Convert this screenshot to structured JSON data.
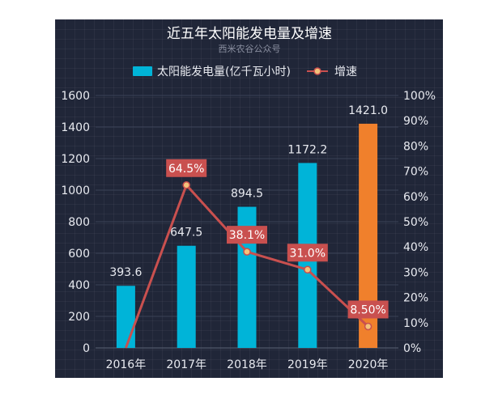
{
  "chart_data": {
    "type": "bar+line",
    "title": "近五年太阳能发电量及增速",
    "subtitle": "西米农谷公众号",
    "categories": [
      "2016年",
      "2017年",
      "2018年",
      "2019年",
      "2020年"
    ],
    "series": [
      {
        "name": "太阳能发电量(亿千瓦小时)",
        "type": "bar",
        "axis": "left",
        "values": [
          393.6,
          647.5,
          894.5,
          1172.2,
          1421.0
        ],
        "labels": [
          "393.6",
          "647.5",
          "894.5",
          "1172.2",
          "1421.0"
        ],
        "color": "#00b4d8",
        "highlight_color": "#f0802c",
        "highlight_index": 4
      },
      {
        "name": "增速",
        "type": "line",
        "axis": "right",
        "values": [
          0,
          64.5,
          38.1,
          31.0,
          8.5
        ],
        "labels": [
          "",
          "64.5%",
          "38.1%",
          "31.0%",
          "8.50%"
        ],
        "color": "#c9504f"
      }
    ],
    "y_left": {
      "min": 0,
      "max": 1600,
      "ticks": [
        "0",
        "200",
        "400",
        "600",
        "800",
        "1000",
        "1200",
        "1400",
        "1600"
      ]
    },
    "y_right": {
      "min": 0,
      "max": 100,
      "ticks": [
        "0%",
        "10%",
        "20%",
        "30%",
        "40%",
        "50%",
        "60%",
        "70%",
        "80%",
        "90%",
        "100%"
      ]
    },
    "legend_position": "top-center",
    "grid": true
  },
  "colors": {
    "background": "#202638",
    "text": "#e8eaf0",
    "subtitle": "#8a8fa0",
    "point_fill": "#f3c27a"
  }
}
